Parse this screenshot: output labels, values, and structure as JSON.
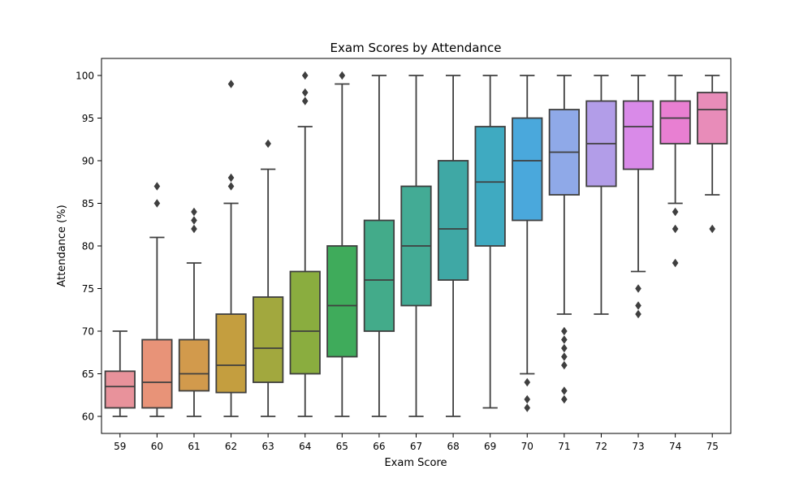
{
  "chart_data": {
    "type": "box",
    "title": "Exam Scores by Attendance",
    "xlabel": "Exam Score",
    "ylabel": "Attendance (%)",
    "ylim": [
      58,
      102
    ],
    "yticks": [
      "60",
      "65",
      "70",
      "75",
      "80",
      "85",
      "90",
      "95",
      "100"
    ],
    "grid": false,
    "categories": [
      "59",
      "60",
      "61",
      "62",
      "63",
      "64",
      "65",
      "66",
      "67",
      "68",
      "69",
      "70",
      "71",
      "72",
      "73",
      "74",
      "75"
    ],
    "colors": [
      "#e8929b",
      "#e89378",
      "#d29a4c",
      "#c49e3f",
      "#a2a83e",
      "#8aad3f",
      "#3fab5b",
      "#43ab8a",
      "#43ab95",
      "#3fa8a5",
      "#3faac1",
      "#4aa8dc",
      "#8fa9e8",
      "#b29de8",
      "#d98ae8",
      "#e87fd2",
      "#e88cb9"
    ],
    "boxes": [
      {
        "min": 60,
        "q1": 61,
        "median": 63.5,
        "q3": 65.3,
        "max": 70,
        "outliers": []
      },
      {
        "min": 60,
        "q1": 61,
        "median": 64,
        "q3": 69,
        "max": 81,
        "outliers": [
          85,
          87
        ]
      },
      {
        "min": 60,
        "q1": 63,
        "median": 65,
        "q3": 69,
        "max": 78,
        "outliers": [
          82,
          83,
          84
        ]
      },
      {
        "min": 60,
        "q1": 62.8,
        "median": 66,
        "q3": 72,
        "max": 85,
        "outliers": [
          87,
          88,
          99
        ]
      },
      {
        "min": 60,
        "q1": 64,
        "median": 68,
        "q3": 74,
        "max": 89,
        "outliers": [
          92
        ]
      },
      {
        "min": 60,
        "q1": 65,
        "median": 70,
        "q3": 77,
        "max": 94,
        "outliers": [
          97,
          98,
          100
        ]
      },
      {
        "min": 60,
        "q1": 67,
        "median": 73,
        "q3": 80,
        "max": 99,
        "outliers": [
          100
        ]
      },
      {
        "min": 60,
        "q1": 70,
        "median": 76,
        "q3": 83,
        "max": 100,
        "outliers": []
      },
      {
        "min": 60,
        "q1": 73,
        "median": 80,
        "q3": 87,
        "max": 100,
        "outliers": []
      },
      {
        "min": 60,
        "q1": 76,
        "median": 82,
        "q3": 90,
        "max": 100,
        "outliers": []
      },
      {
        "min": 61,
        "q1": 80,
        "median": 87.5,
        "q3": 94,
        "max": 100,
        "outliers": []
      },
      {
        "min": 65,
        "q1": 83,
        "median": 90,
        "q3": 95,
        "max": 100,
        "outliers": [
          61,
          62,
          64
        ]
      },
      {
        "min": 72,
        "q1": 86,
        "median": 91,
        "q3": 96,
        "max": 100,
        "outliers": [
          62,
          63,
          66,
          67,
          68,
          69,
          70
        ]
      },
      {
        "min": 72,
        "q1": 87,
        "median": 92,
        "q3": 97,
        "max": 100,
        "outliers": []
      },
      {
        "min": 77,
        "q1": 89,
        "median": 94,
        "q3": 97,
        "max": 100,
        "outliers": [
          72,
          73,
          75
        ]
      },
      {
        "min": 85,
        "q1": 92,
        "median": 95,
        "q3": 97,
        "max": 100,
        "outliers": [
          78,
          82,
          84
        ]
      },
      {
        "min": 86,
        "q1": 92,
        "median": 96,
        "q3": 98,
        "max": 100,
        "outliers": [
          82
        ]
      }
    ]
  }
}
